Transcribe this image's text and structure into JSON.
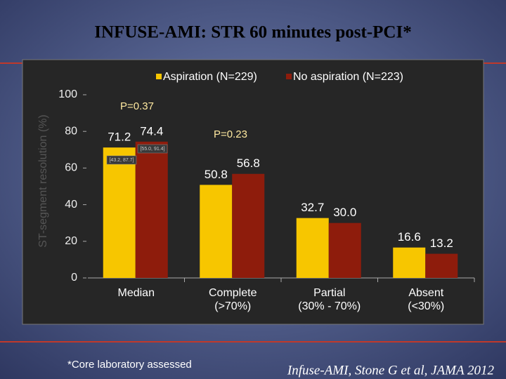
{
  "chart_data": {
    "type": "bar",
    "title": "INFUSE-AMI: STR 60 minutes post-PCI*",
    "y_label": "ST-segment resolution (%)",
    "categories": [
      "Median",
      "Complete\n(>70%)",
      "Partial\n(30% - 70%)",
      "Absent\n(<30%)"
    ],
    "series": [
      {
        "name": "Aspiration (N=229)",
        "color": "#f7c600",
        "values": [
          71.2,
          50.8,
          32.7,
          16.6
        ],
        "value_labels": [
          "71.2",
          "50.8",
          "32.7",
          "16.6"
        ]
      },
      {
        "name": "No aspiration (N=223)",
        "color": "#8e1c0c",
        "values": [
          74.4,
          56.8,
          30.0,
          13.2
        ],
        "value_labels": [
          "74.4",
          "56.8",
          "30.0",
          "13.2"
        ]
      }
    ],
    "ylim": [
      0,
      100
    ],
    "yticks": [
      0,
      20,
      40,
      60,
      80,
      100
    ],
    "grid": false,
    "legend": "top",
    "annotations": [
      "P=0.37",
      "P=0.23",
      "[43.2, 87.7]",
      "[55.0, 91.4]"
    ],
    "footnote": "*Core laboratory assessed",
    "citation": "Infuse-AMI, Stone G et al, JAMA 2012"
  }
}
